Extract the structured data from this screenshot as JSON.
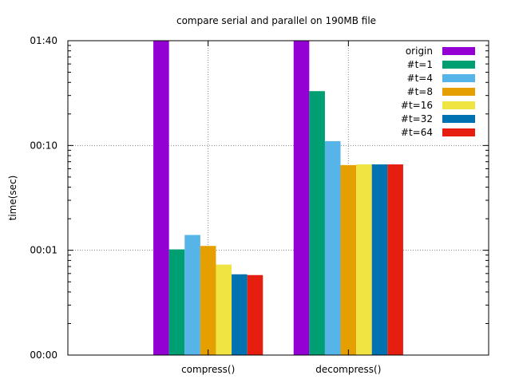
{
  "chart_data": {
    "type": "bar",
    "title": "compare serial and parallel on 190MB file",
    "ylabel": "time(sec)",
    "xlabel": "",
    "y_scale": "log",
    "ylim": [
      0.1,
      100
    ],
    "y_ticks": [
      {
        "value": 0.1,
        "label": "00:00"
      },
      {
        "value": 1,
        "label": "00:01"
      },
      {
        "value": 10,
        "label": "00:10"
      },
      {
        "value": 100,
        "label": "01:40"
      }
    ],
    "grid": true,
    "legend_position": "top-right",
    "categories": [
      "compress()",
      "decompress()"
    ],
    "series": [
      {
        "name": "origin",
        "color": "#9400d3",
        "values": [
          100,
          100
        ]
      },
      {
        "name": "#t=1",
        "color": "#009e73",
        "values": [
          1.02,
          33
        ]
      },
      {
        "name": "#t=4",
        "color": "#56b4e9",
        "values": [
          1.4,
          11
        ]
      },
      {
        "name": "#t=8",
        "color": "#e69f00",
        "values": [
          1.1,
          6.5
        ]
      },
      {
        "name": "#t=16",
        "color": "#f0e442",
        "values": [
          0.73,
          6.6
        ]
      },
      {
        "name": "#t=32",
        "color": "#0072b2",
        "values": [
          0.59,
          6.6
        ]
      },
      {
        "name": "#t=64",
        "color": "#e51e10",
        "values": [
          0.58,
          6.6
        ]
      }
    ]
  }
}
